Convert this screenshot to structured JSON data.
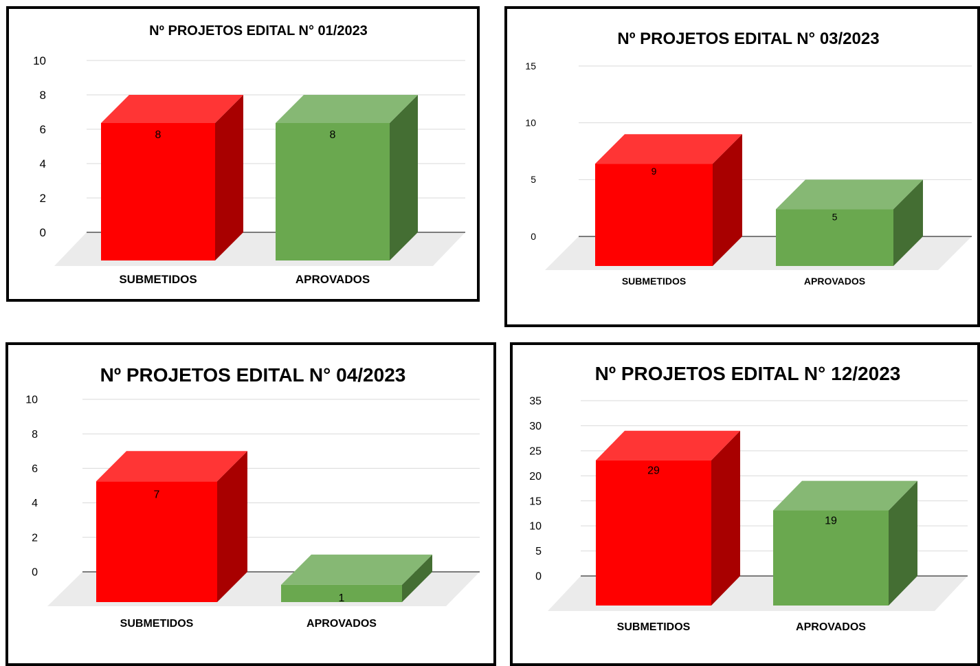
{
  "colors": {
    "submetidos_front": "#ff0000",
    "submetidos_top": "#ff3535",
    "submetidos_side": "#a80000",
    "aprovados_front": "#6aa84f",
    "aprovados_top": "#86b874",
    "aprovados_side": "#446e33",
    "gridline": "#d9d9d9",
    "floor": "#ebebeb",
    "axis": "#333333"
  },
  "chart_data": [
    {
      "type": "bar",
      "style": "3d-column",
      "title": "Nº PROJETOS EDITAL N° 01/2023",
      "categories": [
        "SUBMETIDOS",
        "APROVADOS"
      ],
      "values": [
        8,
        8
      ],
      "data_labels": [
        "8",
        "8"
      ],
      "yticks": [
        "0",
        "2",
        "4",
        "6",
        "8",
        "10"
      ],
      "ylim": [
        0,
        10
      ],
      "grid": true,
      "legend": "none"
    },
    {
      "type": "bar",
      "style": "3d-column",
      "title": "Nº PROJETOS EDITAL N° 03/2023",
      "categories": [
        "SUBMETIDOS",
        "APROVADOS"
      ],
      "values": [
        9,
        5
      ],
      "data_labels": [
        "9",
        "5"
      ],
      "yticks": [
        "0",
        "5",
        "10",
        "15"
      ],
      "ylim": [
        0,
        15
      ],
      "grid": true,
      "legend": "none"
    },
    {
      "type": "bar",
      "style": "3d-column",
      "title": "Nº PROJETOS EDITAL N° 04/2023",
      "categories": [
        "SUBMETIDOS",
        "APROVADOS"
      ],
      "values": [
        7,
        1
      ],
      "data_labels": [
        "7",
        "1"
      ],
      "yticks": [
        "0",
        "2",
        "4",
        "6",
        "8",
        "10"
      ],
      "ylim": [
        0,
        10
      ],
      "grid": true,
      "legend": "none"
    },
    {
      "type": "bar",
      "style": "3d-column",
      "title": "Nº PROJETOS EDITAL N° 12/2023",
      "categories": [
        "SUBMETIDOS",
        "APROVADOS"
      ],
      "values": [
        29,
        19
      ],
      "data_labels": [
        "29",
        "19"
      ],
      "yticks": [
        "0",
        "5",
        "10",
        "15",
        "20",
        "25",
        "30",
        "35"
      ],
      "ylim": [
        0,
        35
      ],
      "grid": true,
      "legend": "none"
    }
  ]
}
